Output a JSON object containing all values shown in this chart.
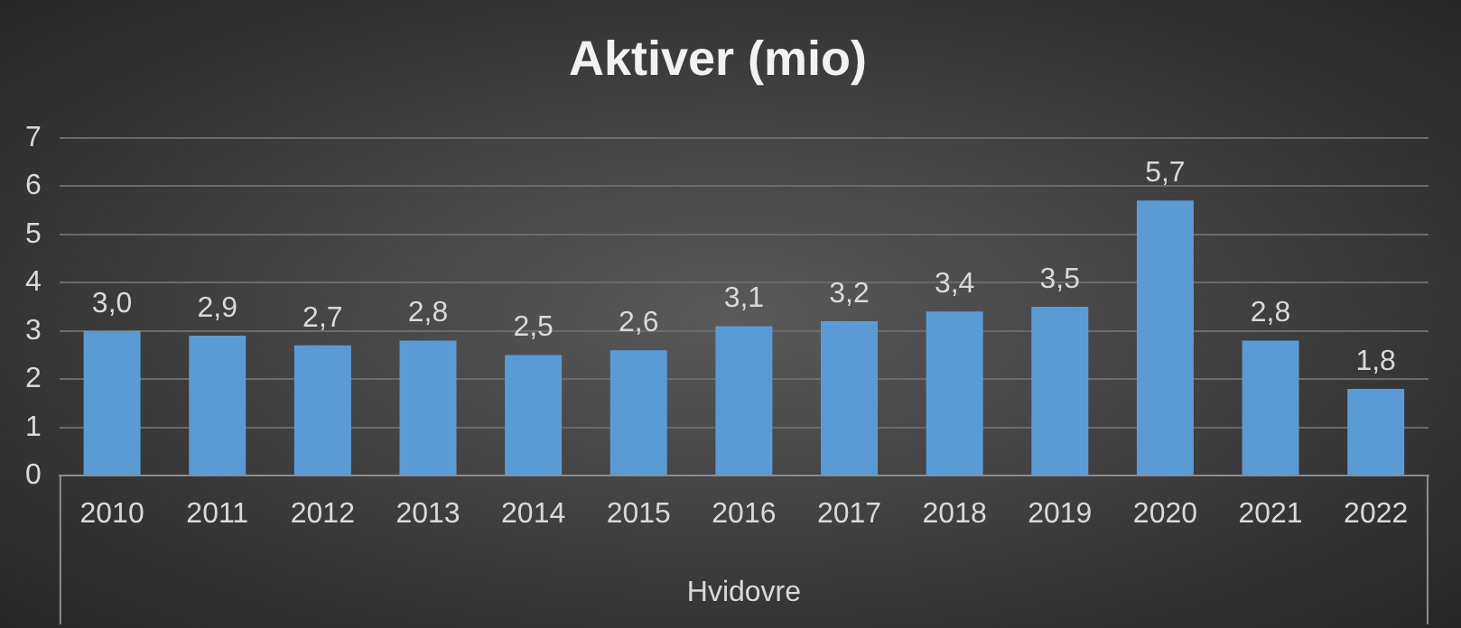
{
  "chart_data": {
    "type": "bar",
    "title": "Aktiver (mio)",
    "xlabel": "Hvidovre",
    "categories": [
      "2010",
      "2011",
      "2012",
      "2013",
      "2014",
      "2015",
      "2016",
      "2017",
      "2018",
      "2019",
      "2020",
      "2021",
      "2022"
    ],
    "values": [
      3.0,
      2.9,
      2.7,
      2.8,
      2.5,
      2.6,
      3.1,
      3.2,
      3.4,
      3.5,
      5.7,
      2.8,
      1.8
    ],
    "value_labels": [
      "3,0",
      "2,9",
      "2,7",
      "2,8",
      "2,5",
      "2,6",
      "3,1",
      "3,2",
      "3,4",
      "3,5",
      "5,7",
      "2,8",
      "1,8"
    ],
    "color": "#5b9bd5",
    "ylim": [
      0,
      7
    ],
    "yticks": [
      0,
      1,
      2,
      3,
      4,
      5,
      6,
      7
    ],
    "grid": "y",
    "legend": false
  }
}
